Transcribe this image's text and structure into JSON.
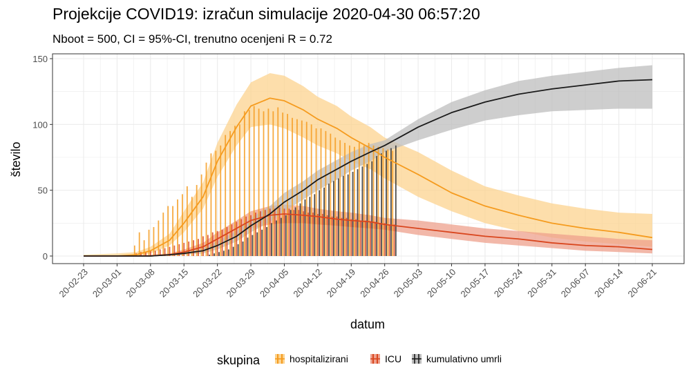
{
  "chart_data": {
    "type": "line",
    "title": "Projekcije COVID19: izračun simulacije 2020-04-30 06:57:20",
    "subtitle": "Nboot = 500, CI = 95%-CI, trenutno ocenjeni R = 0.72",
    "xlabel": "datum",
    "ylabel": "število",
    "x_range": [
      "2020-02-23",
      "2020-06-21"
    ],
    "ylim": [
      0,
      150
    ],
    "grid": true,
    "legend_position": "bottom",
    "legend_title": "skupina",
    "x_ticks": [
      "20-02-23",
      "20-03-01",
      "20-03-08",
      "20-03-15",
      "20-03-22",
      "20-03-29",
      "20-04-05",
      "20-04-12",
      "20-04-19",
      "20-04-26",
      "20-05-03",
      "20-05-10",
      "20-05-17",
      "20-05-24",
      "20-05-31",
      "20-06-07",
      "20-06-14",
      "20-06-21"
    ],
    "y_ticks": [
      "0",
      "50",
      "100",
      "150"
    ],
    "series": [
      {
        "name": "hospitalizirani",
        "color": "#f59b1e",
        "band_color": "#fcd38f",
        "x": [
          "2020-02-23",
          "2020-03-01",
          "2020-03-05",
          "2020-03-08",
          "2020-03-12",
          "2020-03-15",
          "2020-03-19",
          "2020-03-22",
          "2020-03-26",
          "2020-03-29",
          "2020-04-02",
          "2020-04-05",
          "2020-04-09",
          "2020-04-12",
          "2020-04-16",
          "2020-04-19",
          "2020-04-23",
          "2020-04-26",
          "2020-05-03",
          "2020-05-10",
          "2020-05-17",
          "2020-05-24",
          "2020-05-31",
          "2020-06-07",
          "2020-06-14",
          "2020-06-21"
        ],
        "y": [
          0,
          0,
          1,
          4,
          12,
          25,
          45,
          72,
          98,
          114,
          120,
          118,
          111,
          104,
          97,
          90,
          82,
          75,
          62,
          48,
          38,
          31,
          25,
          21,
          18,
          14
        ],
        "lower": [
          0,
          0,
          0,
          2,
          8,
          18,
          36,
          60,
          84,
          98,
          100,
          97,
          90,
          84,
          78,
          72,
          66,
          59,
          45,
          34,
          25,
          19,
          14,
          11,
          9,
          7
        ],
        "upper": [
          1,
          2,
          3,
          7,
          17,
          34,
          56,
          86,
          115,
          132,
          139,
          137,
          129,
          121,
          114,
          106,
          98,
          90,
          79,
          65,
          53,
          46,
          40,
          36,
          33,
          32
        ],
        "observed_dates": [
          "2020-03-05",
          "2020-03-06",
          "2020-03-07",
          "2020-03-08",
          "2020-03-09",
          "2020-03-10",
          "2020-03-11",
          "2020-03-12",
          "2020-03-13",
          "2020-03-14",
          "2020-03-15",
          "2020-03-16",
          "2020-03-17",
          "2020-03-18",
          "2020-03-19",
          "2020-03-20",
          "2020-03-21",
          "2020-03-22",
          "2020-03-23",
          "2020-03-24",
          "2020-03-25",
          "2020-03-26",
          "2020-03-27",
          "2020-03-28",
          "2020-03-29",
          "2020-03-30",
          "2020-03-31",
          "2020-04-01",
          "2020-04-02",
          "2020-04-03",
          "2020-04-04",
          "2020-04-05",
          "2020-04-06",
          "2020-04-07",
          "2020-04-08",
          "2020-04-09",
          "2020-04-10",
          "2020-04-11",
          "2020-04-12",
          "2020-04-13",
          "2020-04-14",
          "2020-04-15",
          "2020-04-16",
          "2020-04-17",
          "2020-04-18",
          "2020-04-19",
          "2020-04-20",
          "2020-04-21",
          "2020-04-22",
          "2020-04-23",
          "2020-04-24",
          "2020-04-25",
          "2020-04-26",
          "2020-04-27",
          "2020-04-28"
        ],
        "observed": [
          8,
          18,
          12,
          20,
          22,
          27,
          33,
          38,
          38,
          43,
          47,
          53,
          45,
          54,
          62,
          71,
          78,
          80,
          84,
          92,
          95,
          99,
          100,
          110,
          111,
          114,
          112,
          110,
          112,
          110,
          113,
          109,
          108,
          105,
          104,
          103,
          102,
          100,
          97,
          97,
          95,
          93,
          90,
          88,
          86,
          84,
          83,
          86,
          84,
          86,
          84,
          83,
          82,
          81,
          80
        ]
      },
      {
        "name": "ICU",
        "color": "#d9461e",
        "band_color": "#eea08c",
        "x": [
          "2020-02-23",
          "2020-03-01",
          "2020-03-08",
          "2020-03-12",
          "2020-03-15",
          "2020-03-19",
          "2020-03-22",
          "2020-03-26",
          "2020-03-29",
          "2020-04-02",
          "2020-04-05",
          "2020-04-09",
          "2020-04-12",
          "2020-04-16",
          "2020-04-19",
          "2020-04-23",
          "2020-04-26",
          "2020-05-03",
          "2020-05-10",
          "2020-05-17",
          "2020-05-24",
          "2020-05-31",
          "2020-06-07",
          "2020-06-14",
          "2020-06-21"
        ],
        "y": [
          0,
          0,
          0,
          1,
          3,
          7,
          13,
          21,
          27,
          31,
          32,
          31,
          30,
          28,
          27,
          26,
          24,
          21,
          18,
          15,
          13,
          10,
          8,
          7,
          5
        ],
        "lower": [
          0,
          0,
          0,
          0,
          1,
          4,
          9,
          16,
          21,
          24,
          25,
          25,
          24,
          23,
          22,
          21,
          20,
          16,
          13,
          10,
          8,
          6,
          4,
          3,
          2
        ],
        "upper": [
          0,
          0,
          1,
          2,
          5,
          10,
          18,
          27,
          34,
          38,
          39,
          38,
          36,
          34,
          33,
          31,
          29,
          27,
          24,
          21,
          19,
          17,
          15,
          13,
          12
        ],
        "observed_dates": [
          "2020-03-05",
          "2020-03-06",
          "2020-03-07",
          "2020-03-08",
          "2020-03-09",
          "2020-03-10",
          "2020-03-11",
          "2020-03-12",
          "2020-03-13",
          "2020-03-14",
          "2020-03-15",
          "2020-03-16",
          "2020-03-17",
          "2020-03-18",
          "2020-03-19",
          "2020-03-20",
          "2020-03-21",
          "2020-03-22",
          "2020-03-23",
          "2020-03-24",
          "2020-03-25",
          "2020-03-26",
          "2020-03-27",
          "2020-03-28",
          "2020-03-29",
          "2020-03-30",
          "2020-03-31",
          "2020-04-01",
          "2020-04-02",
          "2020-04-03",
          "2020-04-04",
          "2020-04-05",
          "2020-04-06",
          "2020-04-07",
          "2020-04-08",
          "2020-04-09",
          "2020-04-10",
          "2020-04-11",
          "2020-04-12",
          "2020-04-13",
          "2020-04-14",
          "2020-04-15",
          "2020-04-16",
          "2020-04-17",
          "2020-04-18",
          "2020-04-19",
          "2020-04-20",
          "2020-04-21",
          "2020-04-22",
          "2020-04-23",
          "2020-04-24",
          "2020-04-25",
          "2020-04-26",
          "2020-04-27",
          "2020-04-28"
        ],
        "observed": [
          2,
          3,
          3,
          4,
          4,
          5,
          6,
          7,
          8,
          9,
          10,
          11,
          12,
          13,
          15,
          16,
          18,
          19,
          20,
          22,
          24,
          26,
          28,
          30,
          31,
          33,
          34,
          35,
          36,
          36,
          37,
          36,
          36,
          35,
          35,
          34,
          33,
          33,
          32,
          32,
          31,
          30,
          30,
          29,
          29,
          28,
          28,
          27,
          27,
          26,
          26,
          25,
          25,
          24,
          24
        ]
      },
      {
        "name": "kumulativno umrli",
        "color": "#1a1a1a",
        "band_color": "#bdbdbd",
        "x": [
          "2020-02-23",
          "2020-03-01",
          "2020-03-08",
          "2020-03-12",
          "2020-03-15",
          "2020-03-19",
          "2020-03-22",
          "2020-03-26",
          "2020-03-29",
          "2020-04-02",
          "2020-04-05",
          "2020-04-09",
          "2020-04-12",
          "2020-04-16",
          "2020-04-19",
          "2020-04-23",
          "2020-04-26",
          "2020-05-03",
          "2020-05-10",
          "2020-05-17",
          "2020-05-24",
          "2020-05-31",
          "2020-06-07",
          "2020-06-14",
          "2020-06-21"
        ],
        "y": [
          0,
          0,
          0,
          1,
          2,
          4,
          8,
          15,
          23,
          32,
          41,
          50,
          58,
          66,
          72,
          79,
          84,
          98,
          109,
          117,
          123,
          127,
          130,
          133,
          134
        ],
        "lower": [
          0,
          0,
          0,
          0,
          1,
          2,
          5,
          11,
          18,
          26,
          34,
          43,
          50,
          58,
          65,
          72,
          79,
          88,
          96,
          103,
          107,
          110,
          111,
          112,
          112
        ],
        "upper": [
          0,
          0,
          0,
          1,
          3,
          6,
          11,
          19,
          29,
          38,
          48,
          57,
          65,
          73,
          79,
          85,
          88,
          104,
          117,
          126,
          133,
          137,
          140,
          143,
          145
        ],
        "observed_dates": [
          "2020-03-20",
          "2020-03-21",
          "2020-03-22",
          "2020-03-23",
          "2020-03-24",
          "2020-03-25",
          "2020-03-26",
          "2020-03-27",
          "2020-03-28",
          "2020-03-29",
          "2020-03-30",
          "2020-03-31",
          "2020-04-01",
          "2020-04-02",
          "2020-04-03",
          "2020-04-04",
          "2020-04-05",
          "2020-04-06",
          "2020-04-07",
          "2020-04-08",
          "2020-04-09",
          "2020-04-10",
          "2020-04-11",
          "2020-04-12",
          "2020-04-13",
          "2020-04-14",
          "2020-04-15",
          "2020-04-16",
          "2020-04-17",
          "2020-04-18",
          "2020-04-19",
          "2020-04-20",
          "2020-04-21",
          "2020-04-22",
          "2020-04-23",
          "2020-04-24",
          "2020-04-25",
          "2020-04-26",
          "2020-04-27",
          "2020-04-28"
        ],
        "observed": [
          1,
          2,
          3,
          4,
          5,
          7,
          9,
          11,
          14,
          16,
          18,
          20,
          22,
          25,
          27,
          29,
          31,
          35,
          37,
          40,
          43,
          45,
          47,
          50,
          52,
          55,
          57,
          59,
          61,
          62,
          64,
          66,
          68,
          70,
          72,
          76,
          78,
          80,
          82,
          84
        ]
      }
    ]
  }
}
